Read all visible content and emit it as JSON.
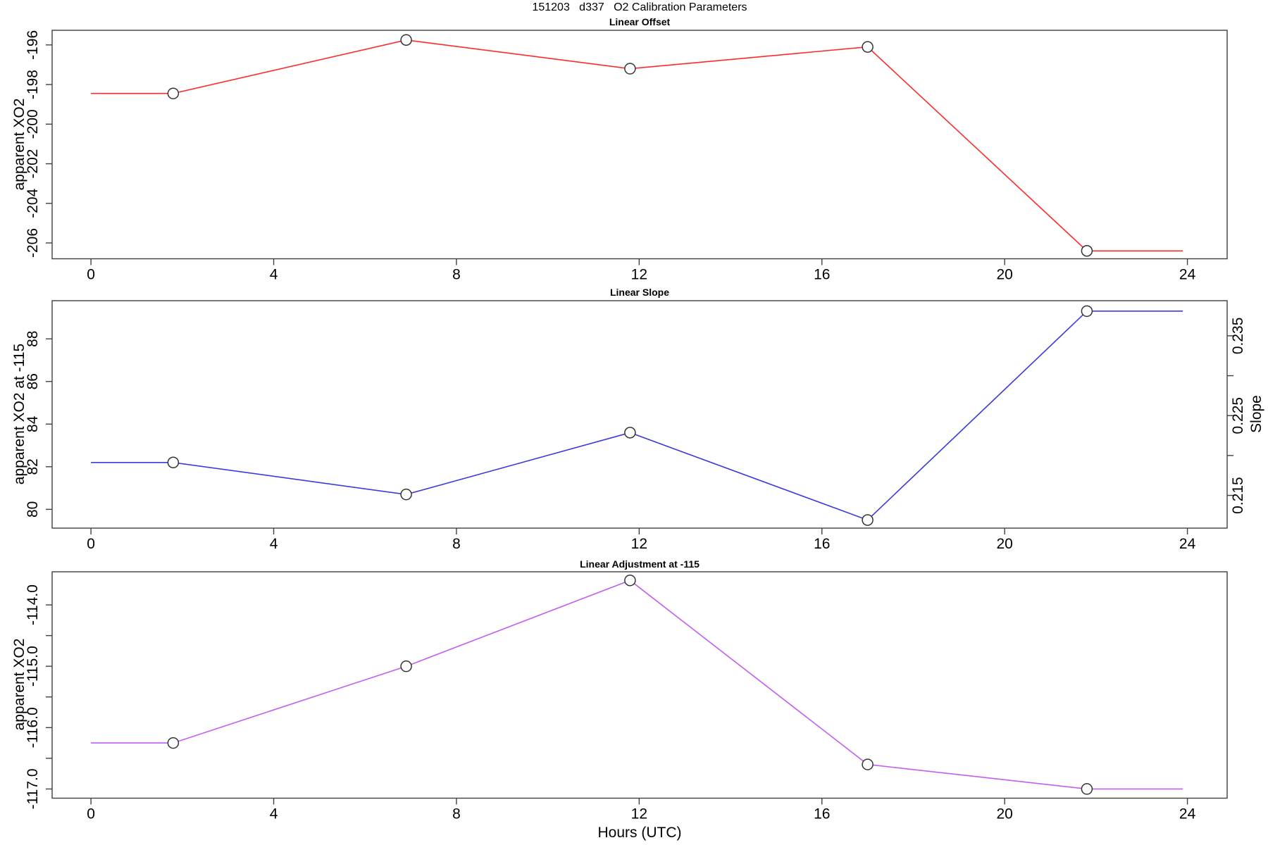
{
  "title": "151203   d337   O2 Calibration Parameters",
  "x_axis": {
    "label": "Hours (UTC)",
    "tick_values": [
      0,
      4,
      8,
      12,
      16,
      20,
      24
    ],
    "tick_labels": [
      "0",
      "4",
      "8",
      "12",
      "16",
      "20",
      "24"
    ],
    "xlim": [
      -0.85,
      24.87
    ]
  },
  "chart_data": [
    {
      "type": "line",
      "title": "Linear Offset",
      "ylabel": "apparent XO2",
      "series_color": "#ff2a2a",
      "marker": "open-circle",
      "x": [
        1.8,
        6.9,
        11.8,
        17.0,
        21.8
      ],
      "y": [
        -198.45,
        -195.75,
        -197.2,
        -196.1,
        -206.4
      ],
      "flat_extend_x": [
        0,
        23.9
      ],
      "y_tick_values": [
        -206,
        -204,
        -202,
        -200,
        -198,
        -196
      ],
      "y_tick_labels": [
        "-206",
        "-204",
        "-202",
        "-200",
        "-198",
        "-196"
      ],
      "ylim": [
        -206.8,
        -195.26
      ],
      "grid": false
    },
    {
      "type": "line",
      "title": "Linear Slope",
      "ylabel": "apparent XO2 at -115",
      "series_color": "#3a3ae0",
      "marker": "open-circle",
      "x": [
        1.8,
        6.9,
        11.8,
        17.0,
        21.8
      ],
      "y": [
        82.2,
        80.7,
        83.6,
        79.5,
        89.3
      ],
      "flat_extend_x": [
        0,
        23.9
      ],
      "y_tick_values": [
        80,
        82,
        84,
        86,
        88
      ],
      "y_tick_labels": [
        "80",
        "82",
        "84",
        "86",
        "88"
      ],
      "ylim": [
        79.12,
        89.79
      ],
      "right_axis": {
        "label": "Slope",
        "tick_values": [
          0.215,
          0.22,
          0.225,
          0.23,
          0.235
        ],
        "tick_labels": [
          "0.215",
          "",
          "0.225",
          "",
          "0.235"
        ],
        "ylim": [
          0.2109,
          0.2394
        ]
      },
      "grid": false
    },
    {
      "type": "line",
      "title": "Linear Adjustment at -115",
      "ylabel": "apparent XO2",
      "series_color": "#c35df0",
      "marker": "open-circle",
      "x": [
        1.8,
        6.9,
        11.8,
        17.0,
        21.8
      ],
      "y": [
        -116.25,
        -115.0,
        -113.6,
        -116.6,
        -117.0
      ],
      "flat_extend_x": [
        0,
        23.9
      ],
      "y_tick_values": [
        -117,
        -116.5,
        -116,
        -115.5,
        -115,
        -114.5,
        -114
      ],
      "y_tick_labels": [
        "-117.0",
        "",
        "-116.0",
        "",
        "-115.0",
        "",
        "-114.0"
      ],
      "ylim": [
        -117.15,
        -113.46
      ],
      "grid": false
    }
  ]
}
